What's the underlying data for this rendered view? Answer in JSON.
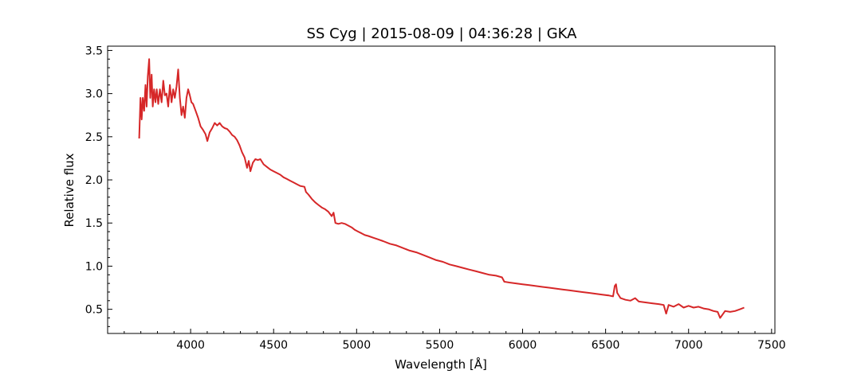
{
  "chart_data": {
    "type": "line",
    "title": "SS Cyg | 2015-08-09 | 04:36:28 | GKA",
    "xlabel": "Wavelength [Å]",
    "ylabel": "Relative flux",
    "xlim": [
      3500,
      7520
    ],
    "ylim": [
      0.22,
      3.55
    ],
    "xticks": [
      4000,
      4500,
      5000,
      5500,
      6000,
      6500,
      7000,
      7500
    ],
    "yticks": [
      0.5,
      1.0,
      1.5,
      2.0,
      2.5,
      3.0,
      3.5
    ],
    "xtick_labels": [
      "4000",
      "4500",
      "5000",
      "5500",
      "6000",
      "6500",
      "7000",
      "7500"
    ],
    "ytick_labels": [
      "0.5",
      "1.0",
      "1.5",
      "2.0",
      "2.5",
      "3.0",
      "3.5"
    ],
    "grid": false,
    "series": [
      {
        "color": "#d62728",
        "points": [
          [
            3690,
            2.48
          ],
          [
            3698,
            2.95
          ],
          [
            3705,
            2.7
          ],
          [
            3712,
            2.95
          ],
          [
            3720,
            2.8
          ],
          [
            3728,
            3.1
          ],
          [
            3735,
            2.85
          ],
          [
            3742,
            3.2
          ],
          [
            3750,
            3.4
          ],
          [
            3757,
            2.95
          ],
          [
            3765,
            3.22
          ],
          [
            3772,
            2.85
          ],
          [
            3780,
            3.05
          ],
          [
            3788,
            2.9
          ],
          [
            3796,
            3.05
          ],
          [
            3805,
            2.88
          ],
          [
            3815,
            3.05
          ],
          [
            3825,
            2.9
          ],
          [
            3835,
            3.15
          ],
          [
            3845,
            2.98
          ],
          [
            3855,
            3.0
          ],
          [
            3865,
            2.85
          ],
          [
            3875,
            3.1
          ],
          [
            3885,
            2.9
          ],
          [
            3895,
            3.05
          ],
          [
            3905,
            2.95
          ],
          [
            3915,
            3.08
          ],
          [
            3925,
            3.28
          ],
          [
            3935,
            2.95
          ],
          [
            3945,
            2.75
          ],
          [
            3955,
            2.85
          ],
          [
            3965,
            2.72
          ],
          [
            3975,
            2.95
          ],
          [
            3985,
            3.05
          ],
          [
            3995,
            2.98
          ],
          [
            4005,
            2.9
          ],
          [
            4015,
            2.88
          ],
          [
            4030,
            2.8
          ],
          [
            4045,
            2.72
          ],
          [
            4060,
            2.62
          ],
          [
            4075,
            2.58
          ],
          [
            4090,
            2.53
          ],
          [
            4101,
            2.45
          ],
          [
            4115,
            2.55
          ],
          [
            4130,
            2.6
          ],
          [
            4145,
            2.66
          ],
          [
            4160,
            2.63
          ],
          [
            4175,
            2.66
          ],
          [
            4190,
            2.62
          ],
          [
            4205,
            2.6
          ],
          [
            4220,
            2.59
          ],
          [
            4235,
            2.56
          ],
          [
            4250,
            2.52
          ],
          [
            4265,
            2.5
          ],
          [
            4280,
            2.46
          ],
          [
            4295,
            2.4
          ],
          [
            4310,
            2.32
          ],
          [
            4325,
            2.26
          ],
          [
            4340,
            2.14
          ],
          [
            4350,
            2.22
          ],
          [
            4360,
            2.1
          ],
          [
            4375,
            2.2
          ],
          [
            4390,
            2.24
          ],
          [
            4405,
            2.23
          ],
          [
            4420,
            2.24
          ],
          [
            4440,
            2.18
          ],
          [
            4460,
            2.15
          ],
          [
            4480,
            2.12
          ],
          [
            4500,
            2.1
          ],
          [
            4520,
            2.08
          ],
          [
            4540,
            2.06
          ],
          [
            4560,
            2.03
          ],
          [
            4580,
            2.01
          ],
          [
            4600,
            1.99
          ],
          [
            4620,
            1.97
          ],
          [
            4640,
            1.95
          ],
          [
            4660,
            1.93
          ],
          [
            4686,
            1.92
          ],
          [
            4695,
            1.86
          ],
          [
            4710,
            1.83
          ],
          [
            4730,
            1.78
          ],
          [
            4750,
            1.74
          ],
          [
            4770,
            1.71
          ],
          [
            4790,
            1.68
          ],
          [
            4810,
            1.66
          ],
          [
            4830,
            1.63
          ],
          [
            4850,
            1.58
          ],
          [
            4861,
            1.62
          ],
          [
            4872,
            1.5
          ],
          [
            4890,
            1.49
          ],
          [
            4910,
            1.5
          ],
          [
            4930,
            1.49
          ],
          [
            4950,
            1.47
          ],
          [
            4970,
            1.45
          ],
          [
            4990,
            1.42
          ],
          [
            5010,
            1.4
          ],
          [
            5030,
            1.38
          ],
          [
            5050,
            1.36
          ],
          [
            5070,
            1.35
          ],
          [
            5100,
            1.33
          ],
          [
            5130,
            1.31
          ],
          [
            5160,
            1.29
          ],
          [
            5200,
            1.26
          ],
          [
            5240,
            1.24
          ],
          [
            5280,
            1.21
          ],
          [
            5320,
            1.18
          ],
          [
            5360,
            1.16
          ],
          [
            5400,
            1.13
          ],
          [
            5440,
            1.1
          ],
          [
            5480,
            1.07
          ],
          [
            5520,
            1.05
          ],
          [
            5560,
            1.02
          ],
          [
            5600,
            1.0
          ],
          [
            5640,
            0.98
          ],
          [
            5680,
            0.96
          ],
          [
            5720,
            0.94
          ],
          [
            5760,
            0.92
          ],
          [
            5800,
            0.9
          ],
          [
            5840,
            0.89
          ],
          [
            5876,
            0.87
          ],
          [
            5890,
            0.82
          ],
          [
            5920,
            0.81
          ],
          [
            5960,
            0.8
          ],
          [
            6000,
            0.79
          ],
          [
            6040,
            0.78
          ],
          [
            6080,
            0.77
          ],
          [
            6120,
            0.76
          ],
          [
            6160,
            0.75
          ],
          [
            6200,
            0.74
          ],
          [
            6240,
            0.73
          ],
          [
            6280,
            0.72
          ],
          [
            6320,
            0.71
          ],
          [
            6360,
            0.7
          ],
          [
            6400,
            0.69
          ],
          [
            6440,
            0.68
          ],
          [
            6480,
            0.67
          ],
          [
            6520,
            0.66
          ],
          [
            6545,
            0.65
          ],
          [
            6555,
            0.77
          ],
          [
            6563,
            0.79
          ],
          [
            6570,
            0.69
          ],
          [
            6590,
            0.63
          ],
          [
            6620,
            0.61
          ],
          [
            6650,
            0.6
          ],
          [
            6678,
            0.63
          ],
          [
            6700,
            0.59
          ],
          [
            6740,
            0.58
          ],
          [
            6780,
            0.57
          ],
          [
            6820,
            0.56
          ],
          [
            6850,
            0.55
          ],
          [
            6865,
            0.45
          ],
          [
            6880,
            0.55
          ],
          [
            6910,
            0.53
          ],
          [
            6940,
            0.56
          ],
          [
            6970,
            0.52
          ],
          [
            7000,
            0.54
          ],
          [
            7030,
            0.52
          ],
          [
            7060,
            0.53
          ],
          [
            7090,
            0.51
          ],
          [
            7120,
            0.5
          ],
          [
            7150,
            0.48
          ],
          [
            7175,
            0.47
          ],
          [
            7190,
            0.4
          ],
          [
            7205,
            0.44
          ],
          [
            7220,
            0.48
          ],
          [
            7250,
            0.47
          ],
          [
            7280,
            0.48
          ],
          [
            7310,
            0.5
          ],
          [
            7335,
            0.52
          ]
        ]
      }
    ]
  }
}
